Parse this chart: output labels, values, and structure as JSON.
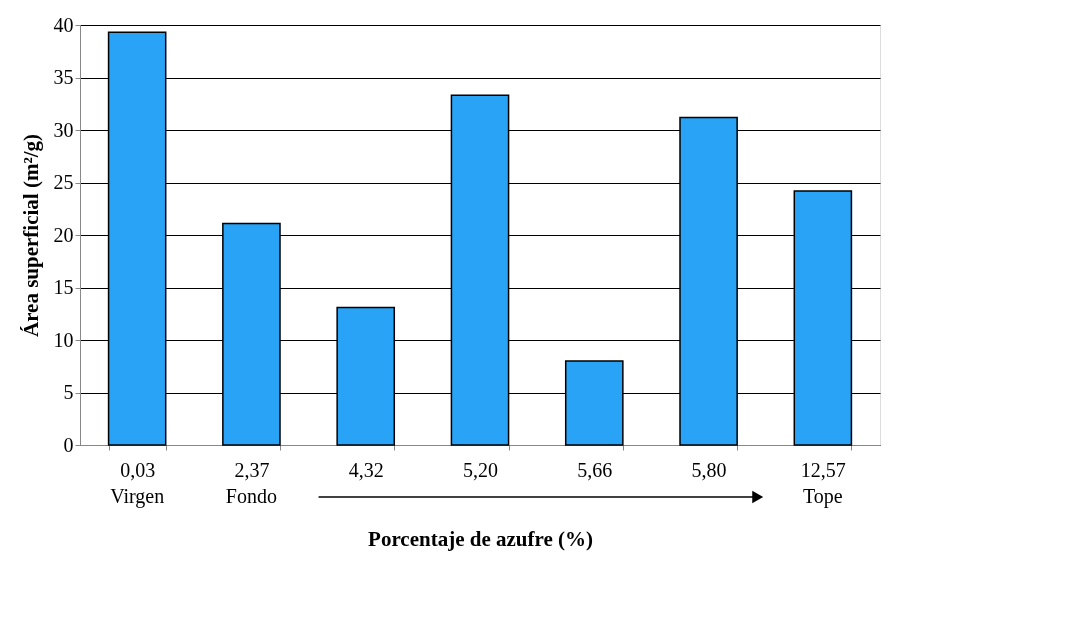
{
  "chart_data": {
    "type": "bar",
    "categories": [
      "0,03",
      "2,37",
      "4,32",
      "5,20",
      "5,66",
      "5,80",
      "12,57"
    ],
    "values": [
      39.3,
      21.1,
      13.1,
      33.3,
      8.0,
      31.2,
      24.2
    ],
    "color": "#29a3f5",
    "xlabel": "Porcentaje de azufre (%)",
    "ylabel": "Área superficial (m²/g)",
    "ylim": [
      0,
      40
    ],
    "yticks": [
      0,
      5,
      10,
      15,
      20,
      25,
      30,
      35,
      40
    ],
    "grid": "y",
    "annotations": [
      "Virgen",
      "Fondo",
      "Tope"
    ]
  }
}
